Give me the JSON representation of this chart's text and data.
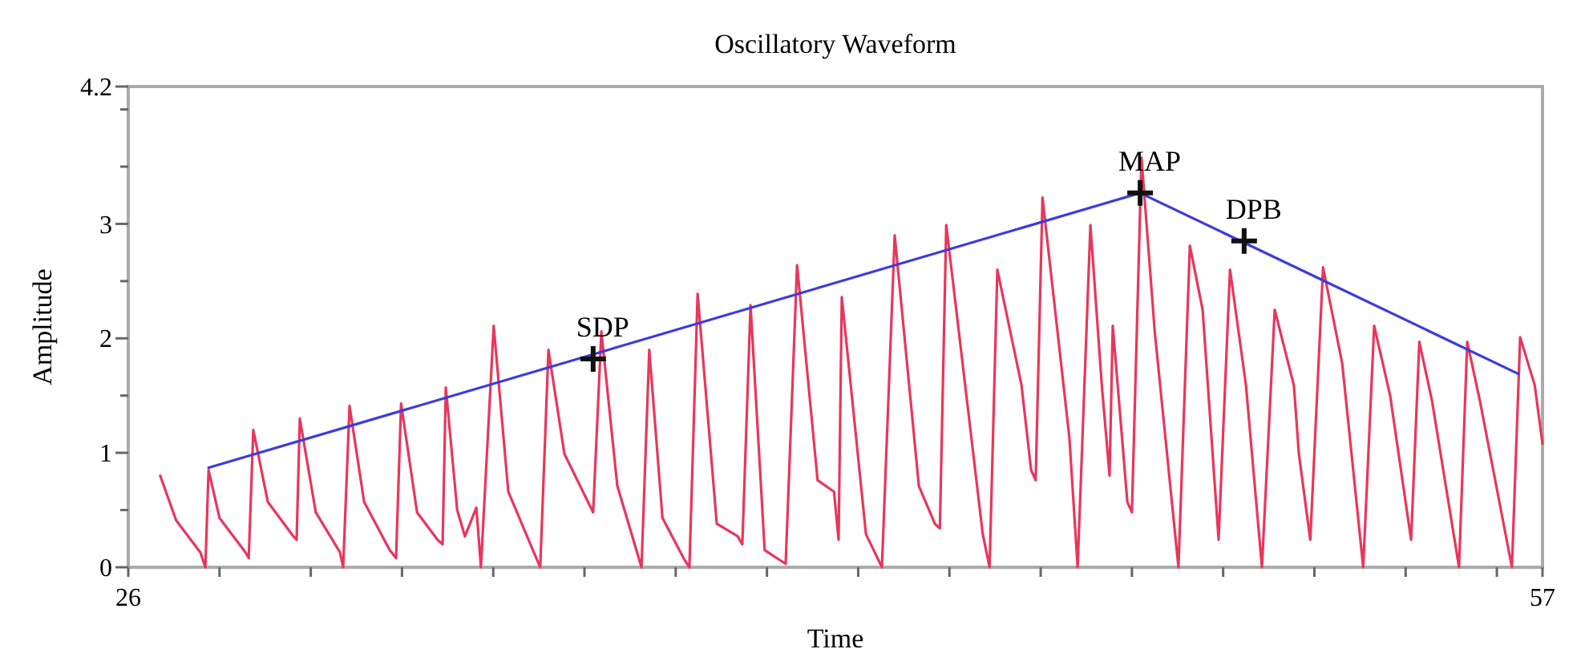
{
  "chart_data": {
    "type": "line",
    "title": "Oscillatory Waveform",
    "xlabel": "Time",
    "ylabel": "Amplitude",
    "xlim": [
      26,
      57
    ],
    "xticks": [
      26,
      {
        "value": 28,
        "label": null
      },
      {
        "value": 30,
        "label": null
      },
      {
        "value": 32,
        "label": null
      },
      {
        "value": 34,
        "label": null
      },
      {
        "value": 36,
        "label": null
      },
      {
        "value": 38,
        "label": null
      },
      {
        "value": 40,
        "label": null
      },
      {
        "value": 42,
        "label": null
      },
      {
        "value": 44,
        "label": null
      },
      {
        "value": 46,
        "label": null
      },
      {
        "value": 48,
        "label": null
      },
      {
        "value": 50,
        "label": null
      },
      {
        "value": 52,
        "label": null
      },
      {
        "value": 54,
        "label": null
      },
      {
        "value": 56,
        "label": null
      },
      57
    ],
    "ylim": [
      0,
      4.2
    ],
    "yticks": [
      0,
      {
        "value": 0.5,
        "label": null
      },
      1,
      {
        "value": 1.5,
        "label": null
      },
      2,
      {
        "value": 2.5,
        "label": null
      },
      3,
      {
        "value": 3.5,
        "label": null
      },
      {
        "value": 4,
        "label": null
      },
      4.2
    ],
    "grid": false,
    "series": [
      {
        "color": "#e8365d",
        "marker": "none",
        "line_style": "solid",
        "x": [
          26.7,
          27.05,
          27.58,
          27.69,
          27.76,
          28.0,
          28.57,
          28.64,
          28.74,
          29.06,
          29.62,
          29.69,
          29.76,
          30.11,
          30.64,
          30.71,
          30.85,
          31.17,
          31.73,
          31.87,
          31.98,
          32.33,
          32.78,
          32.89,
          32.96,
          33.21,
          33.38,
          33.63,
          33.73,
          34.01,
          34.33,
          34.89,
          35.03,
          35.21,
          35.56,
          36.19,
          36.37,
          36.72,
          37.25,
          37.42,
          37.71,
          38.2,
          38.3,
          38.48,
          38.9,
          39.36,
          39.46,
          39.64,
          39.95,
          40.41,
          40.66,
          41.11,
          41.47,
          41.57,
          41.64,
          42.17,
          42.52,
          42.8,
          43.33,
          43.68,
          43.79,
          43.93,
          44.73,
          44.88,
          45.05,
          45.58,
          45.79,
          45.89,
          46.04,
          46.63,
          46.81,
          47.09,
          47.34,
          47.51,
          47.58,
          47.9,
          48.0,
          48.21,
          48.5,
          49.02,
          49.27,
          49.55,
          49.9,
          50.15,
          50.5,
          50.85,
          51.13,
          51.55,
          51.66,
          51.91,
          52.19,
          52.61,
          53.07,
          53.31,
          53.66,
          54.12,
          54.3,
          54.58,
          55.17,
          55.35,
          55.63,
          56.33,
          56.51,
          56.83,
          57.0
        ],
        "values": [
          0.8,
          0.41,
          0.13,
          0,
          0.85,
          0.43,
          0.13,
          0.08,
          1.2,
          0.57,
          0.27,
          0.24,
          1.3,
          0.48,
          0.13,
          0,
          1.41,
          0.57,
          0.15,
          0.08,
          1.43,
          0.48,
          0.24,
          0.2,
          1.57,
          0.5,
          0.27,
          0.52,
          0,
          2.11,
          0.66,
          0.13,
          0,
          1.9,
          0.99,
          0.48,
          2.06,
          0.71,
          0,
          1.9,
          0.43,
          0.06,
          0,
          2.39,
          0.38,
          0.27,
          0.2,
          2.29,
          0.15,
          0.03,
          2.64,
          0.76,
          0.66,
          0.24,
          2.36,
          0.29,
          0,
          2.9,
          0.71,
          0.38,
          0.34,
          2.99,
          0.29,
          0,
          2.6,
          1.59,
          0.85,
          0.76,
          3.23,
          1.13,
          0,
          2.99,
          1.59,
          0.8,
          2.11,
          0.57,
          0.48,
          3.58,
          2.06,
          0,
          2.81,
          2.25,
          0.24,
          2.6,
          1.59,
          0,
          2.25,
          1.59,
          0.99,
          0.24,
          2.62,
          1.78,
          0,
          2.11,
          1.5,
          0.24,
          1.97,
          1.45,
          0,
          1.97,
          1.45,
          0,
          2.01,
          1.59,
          1.08
        ]
      },
      {
        "color": "#3c3cdc",
        "marker": "none",
        "line_style": "solid",
        "x": [
          27.76,
          48.18,
          56.47
        ],
        "values": [
          0.87,
          3.27,
          1.69
        ]
      },
      {
        "type": "scatter",
        "color": "#111111",
        "marker": "cross",
        "x": [
          36.19,
          48.18,
          50.46
        ],
        "values": [
          1.82,
          3.27,
          2.85
        ]
      }
    ],
    "annotations": [
      {
        "text": "SDP",
        "x": 36.19,
        "y": 1.82
      },
      {
        "text": "MAP",
        "x": 48.18,
        "y": 3.27
      },
      {
        "text": "DPB",
        "x": 50.46,
        "y": 2.85
      }
    ]
  }
}
